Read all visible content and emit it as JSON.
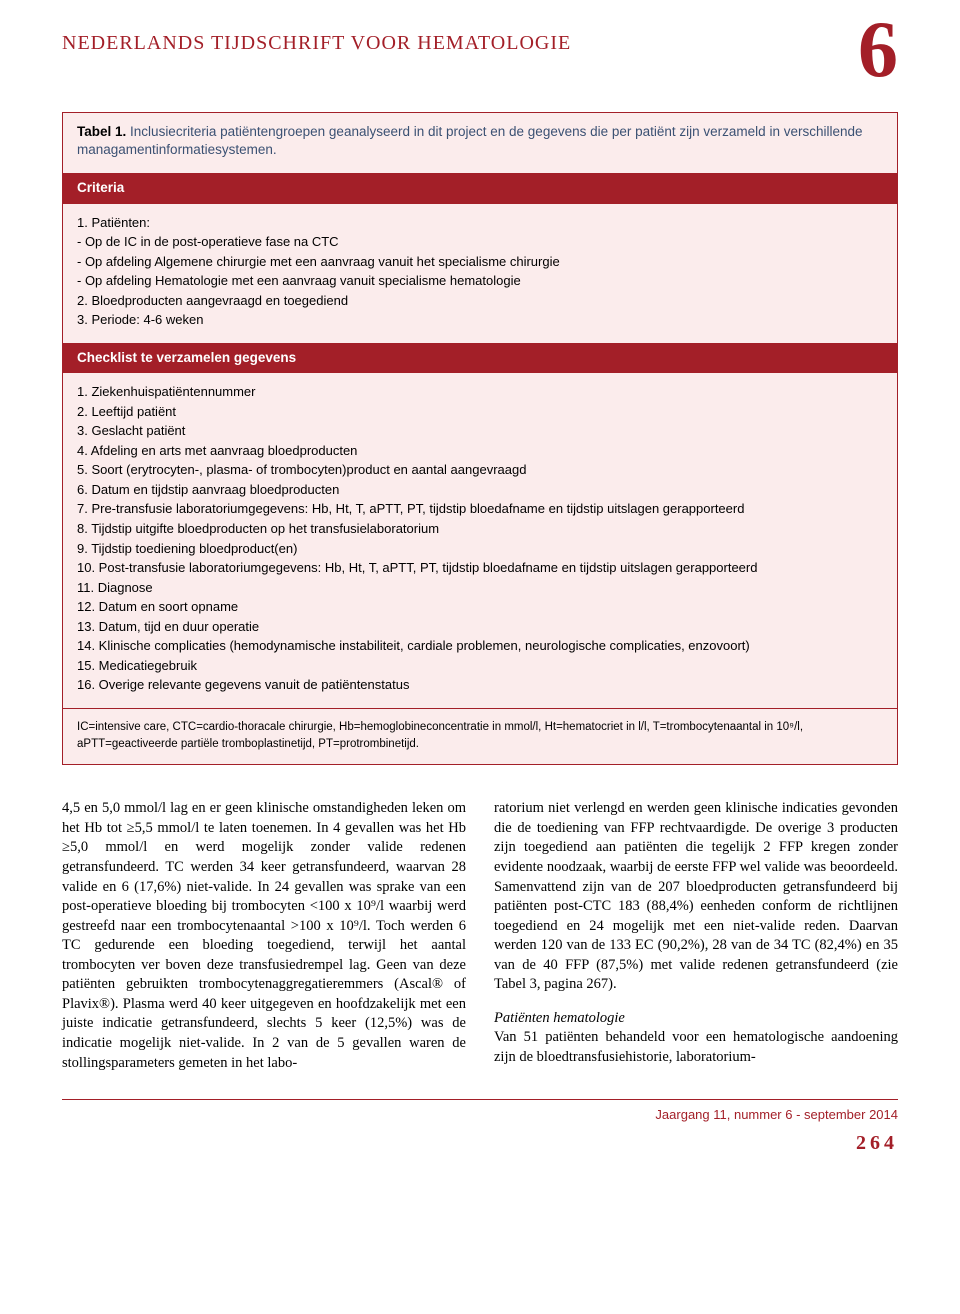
{
  "header": {
    "journal_title": "NEDERLANDS TIJDSCHRIFT VOOR HEMATOLOGIE",
    "issue_number": "6"
  },
  "table1": {
    "label": "Tabel 1.",
    "caption": "Inclusiecriteria patiëntengroepen geanalyseerd in dit project en de gegevens die per patiënt zijn verzameld in verschillende managamentinformatiesystemen.",
    "bar1": "Criteria",
    "criteria": {
      "item1_lead": "1.   Patiënten:",
      "item1_sub1": "-  Op de IC in de post-operatieve fase na CTC",
      "item1_sub2": "-  Op afdeling Algemene chirurgie met een aanvraag vanuit het specialisme chirurgie",
      "item1_sub3": "-  Op afdeling Hematologie met een aanvraag vanuit specialisme hematologie",
      "item2": "2.   Bloedproducten aangevraagd en toegediend",
      "item3": "3.   Periode: 4-6 weken"
    },
    "bar2": "Checklist te verzamelen gegevens",
    "checklist": [
      "1.   Ziekenhuispatiëntennummer",
      "2.   Leeftijd patiënt",
      "3.   Geslacht patiënt",
      "4.   Afdeling en arts met aanvraag bloedproducten",
      "5.   Soort (erytrocyten-, plasma- of trombocyten)product en aantal aangevraagd",
      "6.   Datum en tijdstip aanvraag bloedproducten",
      "7.   Pre-transfusie laboratoriumgegevens: Hb, Ht, T, aPTT, PT, tijdstip bloedafname en tijdstip uitslagen gerapporteerd",
      "8.   Tijdstip uitgifte bloedproducten op het transfusielaboratorium",
      "9.   Tijdstip toediening bloedproduct(en)",
      "10. Post-transfusie laboratoriumgegevens: Hb, Ht, T, aPTT, PT, tijdstip bloedafname en tijdstip uitslagen gerapporteerd",
      "11. Diagnose",
      "12. Datum en soort opname",
      "13. Datum, tijd en duur operatie",
      "14. Klinische complicaties (hemodynamische instabiliteit, cardiale problemen, neurologische complicaties, enzovoort)",
      "15. Medicatiegebruik",
      "16. Overige relevante gegevens vanuit de patiëntenstatus"
    ],
    "footnote": "IC=intensive care, CTC=cardio-thoracale chirurgie, Hb=hemoglobineconcentratie in mmol/l, Ht=hematocriet in l/l, T=trombocytenaantal in 10⁹/l, aPTT=geactiveerde partiële tromboplastinetijd, PT=protrombinetijd."
  },
  "body": {
    "left": "4,5 en 5,0 mmol/l lag en er geen klinische omstandigheden leken om het Hb tot ≥5,5 mmol/l te laten toenemen. In 4 gevallen was het Hb ≥5,0 mmol/l en werd mogelijk zonder valide redenen getransfundeerd.\nTC werden 34 keer getransfundeerd, waarvan 28 valide en 6 (17,6%) niet-valide. In 24 gevallen was sprake van een post-operatieve bloeding bij trombocyten <100 x 10⁹/l waarbij werd gestreefd naar een trombocytenaantal >100 x 10⁹/l. Toch werden 6 TC gedurende een bloeding toegediend, terwijl het aantal trombocyten ver boven deze transfusiedrempel lag. Geen van deze patiënten gebruikten trombocytenaggregatieremmers (Ascal® of Plavix®). Plasma werd 40 keer uitgegeven en hoofdzakelijk met een juiste indicatie getransfundeerd, slechts 5 keer (12,5%) was de indicatie mogelijk niet-valide. In 2 van de 5 gevallen waren de stollingsparameters gemeten in het labo-",
    "right_p1": "ratorium niet verlengd en werden geen klinische indicaties gevonden die de toediening van FFP rechtvaardigde. De overige 3 producten zijn toegediend aan patiënten die tegelijk 2 FFP kregen zonder evidente noodzaak, waarbij de eerste FFP wel valide was beoordeeld.\nSamenvattend zijn van de 207 bloedproducten getransfundeerd bij patiënten post-CTC 183 (88,4%) eenheden conform de richtlijnen toegediend en 24 mogelijk met een niet-valide reden. Daarvan werden 120 van de 133 EC (90,2%), 28 van de 34 TC (82,4%) en 35 van de 40 FFP (87,5%) met valide redenen getransfundeerd (zie Tabel 3, pagina 267).",
    "right_head": "Patiënten hematologie",
    "right_p2": "Van 51 patiënten behandeld voor een hematologische aandoening zijn de bloedtransfusiehistorie, laboratorium-"
  },
  "footer": {
    "issue_line": "Jaargang 11, nummer 6 - september 2014",
    "page": "264"
  },
  "colors": {
    "brand_red": "#a31f28",
    "table_bg": "#fbecec",
    "caption_blue": "#3b5173"
  }
}
